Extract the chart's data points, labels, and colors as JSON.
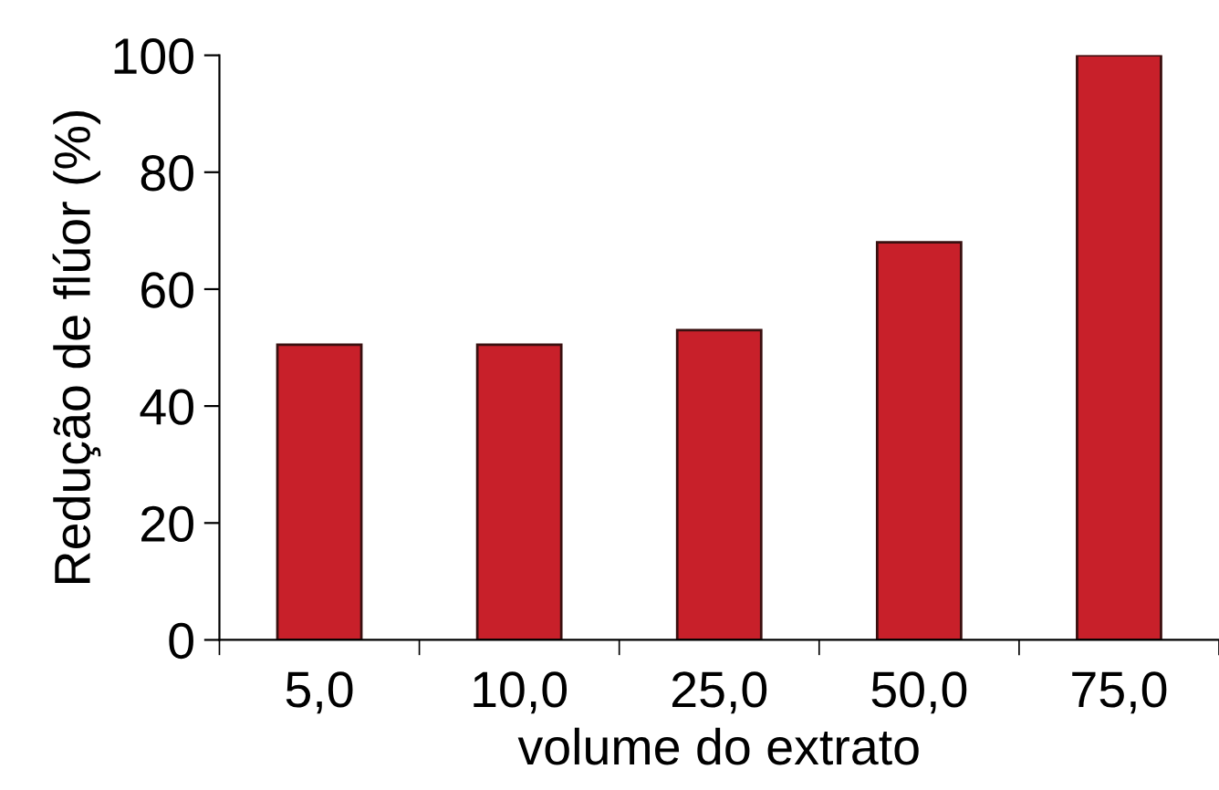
{
  "chart_data": {
    "type": "bar",
    "xlabel": "volume do extrato",
    "ylabel": "Redução de flúor (%)",
    "categories": [
      "5,0",
      "10,0",
      "25,0",
      "50,0",
      "75,0"
    ],
    "values": [
      50.5,
      50.5,
      53,
      68,
      100
    ],
    "color": "#c8202a",
    "ylim": [
      0,
      100
    ],
    "yticks": [
      0,
      20,
      40,
      60,
      80,
      100
    ],
    "grid": false,
    "legend": false
  }
}
